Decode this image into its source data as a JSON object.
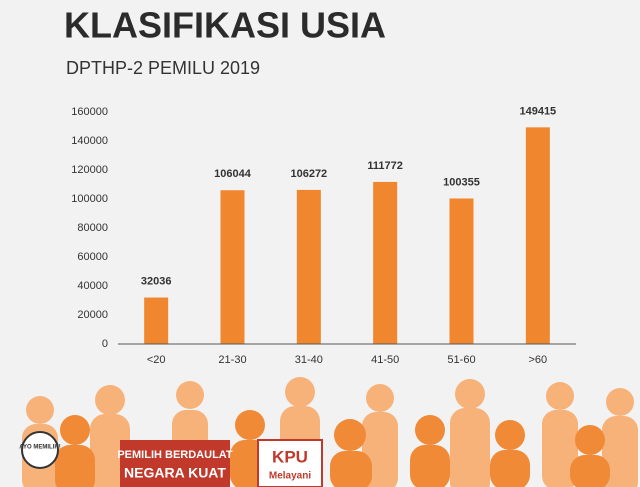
{
  "chart_data": {
    "type": "bar",
    "title": "KLASIFIKASI USIA",
    "subtitle": "DPTHP-2 PEMILU 2019",
    "categories": [
      "<20",
      "21-30",
      "31-40",
      "41-50",
      "51-60",
      ">60"
    ],
    "values": [
      32036,
      106044,
      106272,
      111772,
      100355,
      149415
    ],
    "color": "#f0862e",
    "ylim": [
      0,
      160000
    ],
    "yticks": [
      0,
      20000,
      40000,
      60000,
      80000,
      100000,
      120000,
      140000,
      160000
    ],
    "grid": false,
    "annotations": [
      "AYO MEMILIH!",
      "PEMILIH BERDAULAT",
      "NEGARA KUAT",
      "KPU",
      "Melayani"
    ]
  }
}
